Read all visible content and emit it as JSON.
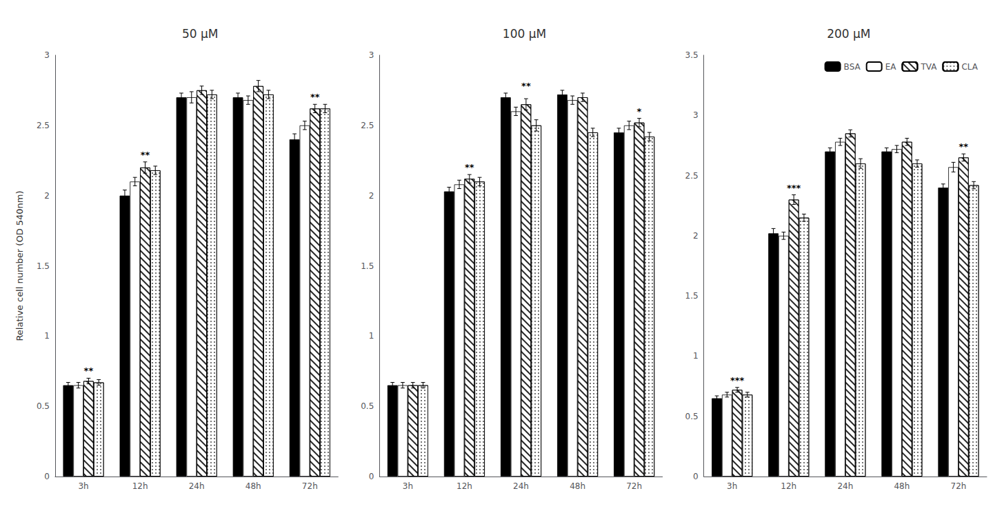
{
  "chart_data": [
    {
      "type": "bar",
      "title": "50 μM",
      "ylabel": "Relative cell number (OD 540nm)",
      "categories": [
        "3h",
        "12h",
        "24h",
        "48h",
        "72h"
      ],
      "series": [
        {
          "name": "BSA",
          "color": "black",
          "values": [
            0.65,
            2.0,
            2.7,
            2.7,
            2.4
          ],
          "errors": [
            0.02,
            0.04,
            0.03,
            0.03,
            0.04
          ]
        },
        {
          "name": "EA",
          "color": "white",
          "values": [
            0.65,
            2.1,
            2.7,
            2.68,
            2.5
          ],
          "errors": [
            0.02,
            0.03,
            0.04,
            0.03,
            0.03
          ]
        },
        {
          "name": "TVA",
          "color": "white",
          "values": [
            0.68,
            2.2,
            2.75,
            2.78,
            2.62
          ],
          "errors": [
            0.02,
            0.04,
            0.03,
            0.04,
            0.03
          ]
        },
        {
          "name": "CLA",
          "color": "white",
          "values": [
            0.67,
            2.18,
            2.72,
            2.72,
            2.62
          ],
          "errors": [
            0.02,
            0.03,
            0.03,
            0.03,
            0.03
          ]
        }
      ],
      "annotations": [
        {
          "category": "3h",
          "text": "**"
        },
        {
          "category": "12h",
          "text": "**"
        },
        {
          "category": "72h",
          "text": "**"
        }
      ],
      "ylim": [
        0,
        3
      ],
      "yticks": [
        0,
        0.5,
        1,
        1.5,
        2,
        2.5,
        3
      ],
      "grid": false
    },
    {
      "type": "bar",
      "title": "100 μM",
      "categories": [
        "3h",
        "12h",
        "24h",
        "48h",
        "72h"
      ],
      "series": [
        {
          "name": "BSA",
          "color": "black",
          "values": [
            0.65,
            2.03,
            2.7,
            2.72,
            2.45
          ],
          "errors": [
            0.02,
            0.03,
            0.03,
            0.03,
            0.03
          ]
        },
        {
          "name": "EA",
          "color": "white",
          "values": [
            0.65,
            2.08,
            2.6,
            2.68,
            2.5
          ],
          "errors": [
            0.02,
            0.03,
            0.03,
            0.03,
            0.03
          ]
        },
        {
          "name": "TVA",
          "color": "white",
          "values": [
            0.65,
            2.12,
            2.65,
            2.7,
            2.52
          ],
          "errors": [
            0.02,
            0.03,
            0.04,
            0.03,
            0.03
          ]
        },
        {
          "name": "CLA",
          "color": "white",
          "values": [
            0.65,
            2.1,
            2.5,
            2.45,
            2.42
          ],
          "errors": [
            0.02,
            0.03,
            0.04,
            0.03,
            0.03
          ]
        }
      ],
      "annotations": [
        {
          "category": "12h",
          "text": "**"
        },
        {
          "category": "24h",
          "text": "**"
        },
        {
          "category": "72h",
          "text": "*"
        }
      ],
      "ylim": [
        0,
        3
      ],
      "yticks": [
        0,
        0.5,
        1,
        1.5,
        2,
        2.5,
        3
      ],
      "grid": false
    },
    {
      "type": "bar",
      "title": "200 μM",
      "categories": [
        "3h",
        "12h",
        "24h",
        "48h",
        "72h"
      ],
      "series": [
        {
          "name": "BSA",
          "color": "black",
          "values": [
            0.65,
            2.02,
            2.7,
            2.7,
            2.4
          ],
          "errors": [
            0.02,
            0.04,
            0.03,
            0.03,
            0.03
          ]
        },
        {
          "name": "EA",
          "color": "white",
          "values": [
            0.68,
            2.0,
            2.78,
            2.72,
            2.57
          ],
          "errors": [
            0.02,
            0.03,
            0.03,
            0.03,
            0.04
          ]
        },
        {
          "name": "TVA",
          "color": "white",
          "values": [
            0.72,
            2.3,
            2.85,
            2.78,
            2.65
          ],
          "errors": [
            0.02,
            0.04,
            0.03,
            0.03,
            0.03
          ]
        },
        {
          "name": "CLA",
          "color": "white",
          "values": [
            0.68,
            2.15,
            2.6,
            2.6,
            2.42
          ],
          "errors": [
            0.02,
            0.03,
            0.04,
            0.03,
            0.03
          ]
        }
      ],
      "annotations": [
        {
          "category": "3h",
          "text": "***"
        },
        {
          "category": "12h",
          "text": "***"
        },
        {
          "category": "72h",
          "text": "**"
        }
      ],
      "ylim": [
        0,
        3.5
      ],
      "yticks": [
        0,
        0.5,
        1,
        1.5,
        2,
        2.5,
        3,
        3.5
      ],
      "grid": false,
      "legend": "upper right"
    }
  ]
}
